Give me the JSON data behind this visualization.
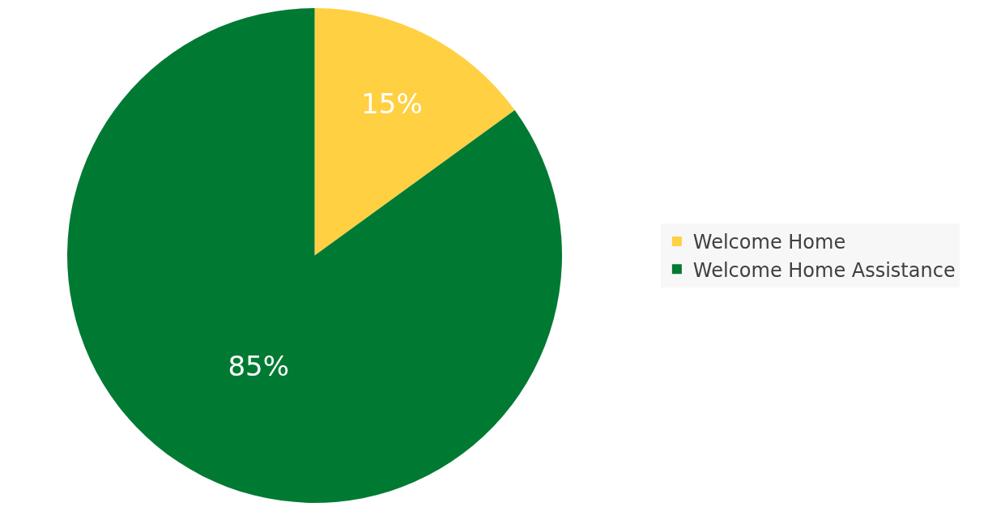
{
  "chart_data": {
    "type": "pie",
    "categories": [
      "Welcome Home",
      "Welcome Home Assistance"
    ],
    "values": [
      15,
      85
    ],
    "colors": [
      "#ffd042",
      "#007a33"
    ],
    "value_labels": [
      "15%",
      "85%"
    ],
    "legend": "right"
  }
}
